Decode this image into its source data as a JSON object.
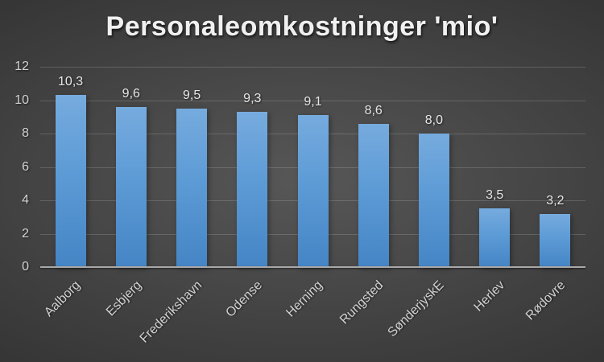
{
  "chart_data": {
    "type": "bar",
    "title": "Personaleomkostninger 'mio'",
    "categories": [
      "Aalborg",
      "Esbjerg",
      "Frederikshavn",
      "Odense",
      "Herning",
      "Rungsted",
      "SønderjyskE",
      "Herlev",
      "Rødovre"
    ],
    "values": [
      10.3,
      9.6,
      9.5,
      9.3,
      9.1,
      8.6,
      8.0,
      3.5,
      3.2
    ],
    "value_labels": [
      "10,3",
      "9,6",
      "9,5",
      "9,3",
      "9,1",
      "8,6",
      "8,0",
      "3,5",
      "3,2"
    ],
    "xlabel": "",
    "ylabel": "",
    "ylim": [
      0,
      12
    ],
    "yticks": [
      0,
      2,
      4,
      6,
      8,
      10,
      12
    ],
    "grid": true,
    "legend": false,
    "bar_color_top": "#76abde",
    "bar_color_bottom": "#4585c5",
    "background_center": "#575757",
    "background_edge": "#262626",
    "gridline_color": "rgba(255,255,255,0.16)",
    "axis_line_color": "#a8a8a8",
    "title_color": "#f0f0f0",
    "label_color": "#d2d2d2",
    "value_label_color": "#e6e6e6"
  }
}
